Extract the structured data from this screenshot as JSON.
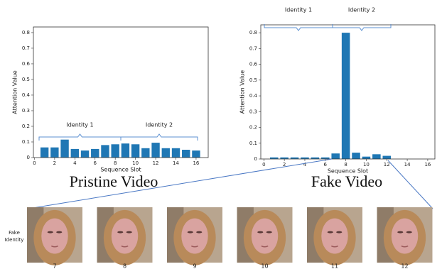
{
  "chart_data": [
    {
      "type": "bar",
      "title": "Pristine Video",
      "x_label": "Sequence Slot",
      "y_label": "Attention Value",
      "x": [
        1,
        2,
        3,
        4,
        5,
        6,
        7,
        8,
        9,
        10,
        11,
        12,
        13,
        14,
        15,
        16
      ],
      "values": [
        0.065,
        0.065,
        0.115,
        0.055,
        0.045,
        0.055,
        0.08,
        0.085,
        0.09,
        0.085,
        0.06,
        0.095,
        0.06,
        0.06,
        0.05,
        0.045
      ],
      "color": "#1f77b4",
      "xlim": [
        -0.1,
        17.2
      ],
      "xticks": [
        0,
        2,
        4,
        6,
        8,
        10,
        12,
        14,
        16
      ],
      "ylim": [
        0,
        0.836
      ],
      "yticks": [
        0,
        0.1,
        0.2,
        0.3,
        0.4,
        0.5,
        0.6,
        0.7,
        0.8
      ],
      "annotations": [
        "Identity 1",
        "Identity 2"
      ]
    },
    {
      "type": "bar",
      "title": "Fake Video",
      "x_label": "Sequence Slot",
      "y_label": "Attention Value",
      "x": [
        1,
        2,
        3,
        4,
        5,
        6,
        7,
        8,
        9,
        10,
        11,
        12
      ],
      "values": [
        0.01,
        0.01,
        0.01,
        0.01,
        0.01,
        0.01,
        0.035,
        0.8,
        0.04,
        0.015,
        0.03,
        0.02
      ],
      "color": "#1f77b4",
      "xlim": [
        -0.3,
        16.7
      ],
      "xticks": [
        0,
        2,
        4,
        6,
        8,
        10,
        12,
        14,
        16
      ],
      "ylim": [
        0,
        0.85
      ],
      "yticks": [
        0,
        0.1,
        0.2,
        0.3,
        0.4,
        0.5,
        0.6,
        0.7,
        0.8
      ],
      "annotations": [
        "Identity 1",
        "Identity 2"
      ]
    }
  ],
  "faces": {
    "label": "Fake Identity",
    "frames": [
      "7",
      "8",
      "9",
      "10",
      "11",
      "12"
    ]
  }
}
